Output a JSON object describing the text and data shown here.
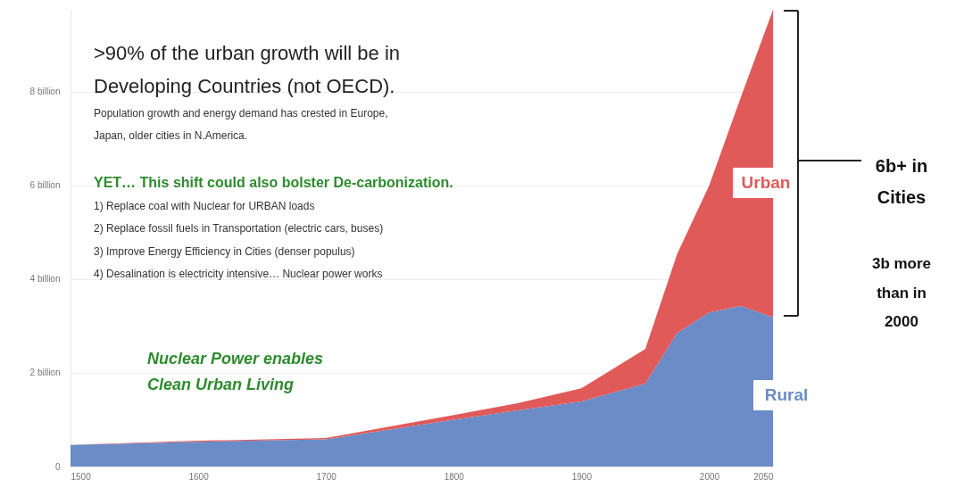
{
  "chart_data": {
    "type": "area",
    "stacked": true,
    "x": [
      1500,
      1600,
      1700,
      1800,
      1850,
      1900,
      1950,
      1975,
      2000,
      2025,
      2050
    ],
    "series": [
      {
        "name": "Rural",
        "color": "#6b8cc7",
        "values": [
          0.46,
          0.53,
          0.58,
          1.0,
          1.2,
          1.39,
          1.77,
          2.85,
          3.29,
          3.43,
          3.19
        ]
      },
      {
        "name": "Urban",
        "color": "#e05a5a",
        "values": [
          0.0,
          0.02,
          0.03,
          0.1,
          0.15,
          0.28,
          0.74,
          1.69,
          2.71,
          4.47,
          6.56
        ]
      }
    ],
    "xlim": [
      1500,
      2050
    ],
    "xticks": [
      1500,
      1600,
      1700,
      1800,
      1900,
      2000,
      2050
    ],
    "yticks": [
      0,
      {
        "value": 2,
        "label": "2 billion"
      },
      {
        "value": 4,
        "label": "4 billion"
      },
      {
        "value": 6,
        "label": "6 billion"
      },
      {
        "value": 8,
        "label": "8 billion"
      }
    ],
    "ylim": [
      0,
      9.75
    ],
    "grid": "y",
    "legend": false,
    "annotations": [
      ">90% of the urban growth will be in",
      "Developing Countries (not OECD).",
      "Population growth and energy demand has crested in Europe,",
      "Japan, older cities in N.America.",
      "YET… This shift could also bolster De-carbonization.",
      "1)  Replace coal with Nuclear for URBAN loads",
      "2)  Replace fossil fuels in Transportation  (electric cars, buses)",
      "3)  Improve Energy Efficiency in Cities (denser populus)",
      "4)  Desalination is electricity intensive…  Nuclear power works",
      "Nuclear Power enables",
      "Clean Urban Living",
      "6b+ in",
      "Cities",
      "3b more",
      "than in",
      "2000"
    ]
  }
}
